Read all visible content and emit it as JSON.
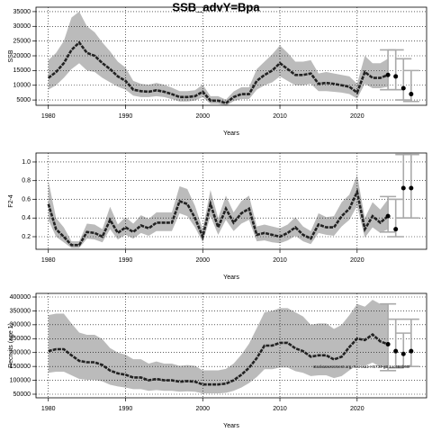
{
  "chart_data": [
    {
      "type": "band-line",
      "title": "SSB_advY=Bpa",
      "x_label": "Years",
      "y_label": "SSB",
      "xlim": [
        1978.4,
        2029
      ],
      "xticks": [
        1980,
        1990,
        2000,
        2010,
        2020
      ],
      "ylim": [
        3200,
        36500
      ],
      "yticks": [
        5000,
        10000,
        15000,
        20000,
        25000,
        30000,
        35000
      ],
      "grid": true,
      "color": "#222222",
      "band_color": "#bbbbbb",
      "forecast_color": "#aaaaaa",
      "x": [
        1980,
        1981,
        1982,
        1983,
        1984,
        1985,
        1986,
        1987,
        1988,
        1989,
        1990,
        1991,
        1992,
        1993,
        1994,
        1995,
        1996,
        1997,
        1998,
        1999,
        2000,
        2001,
        2002,
        2003,
        2004,
        2005,
        2006,
        2007,
        2008,
        2009,
        2010,
        2011,
        2012,
        2013,
        2014,
        2015,
        2016,
        2017,
        2018,
        2019,
        2020,
        2021,
        2022,
        2023,
        2024
      ],
      "values": [
        12500,
        14500,
        17500,
        22000,
        24500,
        21000,
        20000,
        17500,
        15500,
        13000,
        11500,
        8500,
        8000,
        7800,
        8300,
        7800,
        7000,
        6000,
        6000,
        6300,
        7800,
        4800,
        4800,
        3900,
        6000,
        7000,
        7000,
        11500,
        13500,
        15000,
        17500,
        15500,
        13500,
        13500,
        14000,
        10500,
        10800,
        10500,
        10000,
        9500,
        7500,
        14500,
        12500,
        12500,
        13500
      ],
      "lower": [
        8500,
        10000,
        12500,
        15500,
        17500,
        15000,
        14500,
        12500,
        11000,
        9500,
        8500,
        6500,
        6000,
        6000,
        6300,
        6000,
        5300,
        4500,
        4500,
        4800,
        6000,
        3700,
        3700,
        3000,
        4600,
        5300,
        5300,
        8500,
        10000,
        11000,
        13000,
        11500,
        10000,
        10000,
        10500,
        8000,
        8000,
        7800,
        7500,
        7000,
        5500,
        10500,
        9000,
        9000,
        9500
      ],
      "upper": [
        18500,
        21000,
        25000,
        33000,
        35000,
        30000,
        28000,
        24500,
        21500,
        18000,
        16000,
        11500,
        10500,
        10200,
        10800,
        10200,
        9200,
        8000,
        8000,
        8300,
        10200,
        6300,
        6300,
        5100,
        7900,
        9300,
        9300,
        15500,
        18000,
        20500,
        23500,
        21000,
        18000,
        18000,
        18500,
        14000,
        14500,
        14000,
        13500,
        13000,
        10500,
        20000,
        17500,
        17500,
        19000
      ],
      "forecast": {
        "x": [
          2024,
          2025,
          2026,
          2027
        ],
        "values": [
          13500,
          13000,
          9000,
          7000
        ],
        "lower": [
          8500,
          8500,
          5000,
          4500
        ],
        "upper": [
          22000,
          22000,
          19000,
          15000
        ]
      }
    },
    {
      "type": "band-line",
      "x_label": "Years",
      "y_label": "F2-4",
      "xlim": [
        1978.4,
        2029
      ],
      "xticks": [
        1980,
        1990,
        2000,
        2010,
        2020
      ],
      "ylim": [
        0.065,
        1.096
      ],
      "yticks": [
        0.2,
        0.4,
        0.6,
        0.8,
        {
          "value": 1,
          "label": "1.0"
        }
      ],
      "grid": true,
      "color": "#222222",
      "band_color": "#bbbbbb",
      "forecast_color": "#aaaaaa",
      "x": [
        1980,
        1981,
        1982,
        1983,
        1984,
        1985,
        1986,
        1987,
        1988,
        1989,
        1990,
        1991,
        1992,
        1993,
        1994,
        1995,
        1996,
        1997,
        1998,
        1999,
        2000,
        2001,
        2002,
        2003,
        2004,
        2005,
        2006,
        2007,
        2008,
        2009,
        2010,
        2011,
        2012,
        2013,
        2014,
        2015,
        2016,
        2017,
        2018,
        2019,
        2020,
        2021,
        2022,
        2023,
        2024
      ],
      "values": [
        0.55,
        0.28,
        0.2,
        0.11,
        0.11,
        0.25,
        0.24,
        0.2,
        0.38,
        0.24,
        0.3,
        0.25,
        0.32,
        0.29,
        0.35,
        0.35,
        0.35,
        0.58,
        0.55,
        0.4,
        0.2,
        0.55,
        0.3,
        0.5,
        0.35,
        0.45,
        0.5,
        0.22,
        0.24,
        0.22,
        0.2,
        0.24,
        0.3,
        0.22,
        0.18,
        0.33,
        0.3,
        0.3,
        0.42,
        0.5,
        0.68,
        0.28,
        0.42,
        0.35,
        0.42
      ],
      "lower": [
        0.38,
        0.2,
        0.14,
        0.08,
        0.08,
        0.18,
        0.17,
        0.14,
        0.28,
        0.17,
        0.22,
        0.18,
        0.24,
        0.21,
        0.26,
        0.26,
        0.26,
        0.45,
        0.42,
        0.3,
        0.14,
        0.42,
        0.22,
        0.38,
        0.26,
        0.34,
        0.38,
        0.15,
        0.16,
        0.14,
        0.13,
        0.16,
        0.21,
        0.15,
        0.12,
        0.24,
        0.22,
        0.21,
        0.31,
        0.38,
        0.53,
        0.19,
        0.3,
        0.24,
        0.28
      ],
      "upper": [
        0.8,
        0.4,
        0.3,
        0.15,
        0.15,
        0.34,
        0.33,
        0.28,
        0.52,
        0.33,
        0.41,
        0.34,
        0.43,
        0.39,
        0.46,
        0.46,
        0.46,
        0.74,
        0.71,
        0.53,
        0.28,
        0.7,
        0.4,
        0.64,
        0.46,
        0.58,
        0.64,
        0.31,
        0.33,
        0.31,
        0.29,
        0.33,
        0.41,
        0.31,
        0.26,
        0.45,
        0.41,
        0.42,
        0.57,
        0.65,
        0.86,
        0.4,
        0.57,
        0.49,
        0.6
      ],
      "forecast": {
        "x": [
          2024,
          2025,
          2026,
          2027
        ],
        "values": [
          0.42,
          0.28,
          0.72,
          0.72
        ],
        "lower": [
          0.25,
          0.2,
          0.4,
          0.4
        ],
        "upper": [
          0.63,
          0.6,
          1.08,
          1.08
        ]
      }
    },
    {
      "type": "band-line",
      "x_label": "Years",
      "y_label": "Recruits (age 1)",
      "annotation": "stockassessment.org, NSHaa1-H5734-g8 1cc484b60f",
      "xlim": [
        1978.4,
        2029
      ],
      "xticks": [
        1980,
        1990,
        2000,
        2010,
        2020
      ],
      "ylim": [
        37000,
        413000
      ],
      "yticks": [
        50000,
        100000,
        150000,
        200000,
        250000,
        300000,
        350000,
        400000
      ],
      "grid": true,
      "color": "#222222",
      "band_color": "#bbbbbb",
      "forecast_color": "#aaaaaa",
      "x": [
        1980,
        1981,
        1982,
        1983,
        1984,
        1985,
        1986,
        1987,
        1988,
        1989,
        1990,
        1991,
        1992,
        1993,
        1994,
        1995,
        1996,
        1997,
        1998,
        1999,
        2000,
        2001,
        2002,
        2003,
        2004,
        2005,
        2006,
        2007,
        2008,
        2009,
        2010,
        2011,
        2012,
        2013,
        2014,
        2015,
        2016,
        2017,
        2018,
        2019,
        2020,
        2021,
        2022,
        2023,
        2024
      ],
      "values": [
        205000,
        212000,
        212000,
        190000,
        170000,
        165000,
        165000,
        155000,
        135000,
        125000,
        120000,
        110000,
        110000,
        100000,
        105000,
        100000,
        100000,
        95000,
        97000,
        95000,
        85000,
        85000,
        85000,
        88000,
        100000,
        120000,
        145000,
        180000,
        225000,
        225000,
        235000,
        235000,
        215000,
        205000,
        185000,
        190000,
        190000,
        175000,
        185000,
        220000,
        250000,
        245000,
        265000,
        240000,
        230000
      ],
      "lower": [
        127000,
        131000,
        131000,
        118000,
        105000,
        102000,
        102000,
        96000,
        84000,
        78000,
        74000,
        68000,
        68000,
        62000,
        65000,
        62000,
        62000,
        59000,
        60000,
        59000,
        53000,
        53000,
        53000,
        55000,
        62000,
        74000,
        90000,
        112000,
        140000,
        140000,
        146000,
        146000,
        133000,
        127000,
        115000,
        118000,
        118000,
        108000,
        115000,
        136000,
        155000,
        152000,
        164000,
        149000,
        143000
      ],
      "upper": [
        335000,
        340000,
        340000,
        305000,
        272000,
        264000,
        264000,
        248000,
        216000,
        200000,
        192000,
        176000,
        176000,
        160000,
        168000,
        160000,
        160000,
        152000,
        155000,
        152000,
        136000,
        136000,
        136000,
        141000,
        160000,
        192000,
        232000,
        288000,
        345000,
        350000,
        360000,
        360000,
        345000,
        330000,
        300000,
        305000,
        305000,
        285000,
        300000,
        335000,
        375000,
        365000,
        390000,
        375000,
        375000
      ],
      "forecast": {
        "x": [
          2024,
          2025,
          2026,
          2027
        ],
        "values": [
          230000,
          205000,
          195000,
          205000
        ],
        "lower": [
          135000,
          145000,
          150000,
          150000
        ],
        "upper": [
          375000,
          320000,
          270000,
          320000
        ]
      }
    }
  ]
}
